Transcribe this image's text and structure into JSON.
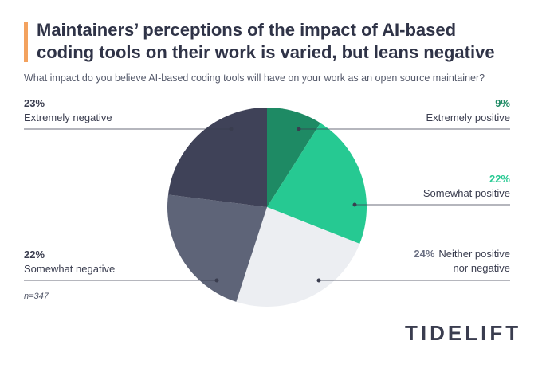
{
  "chart_data": {
    "type": "pie",
    "title": "Maintainers’ perceptions of the impact of AI-based coding tools on their work is varied, but leans negative",
    "subtitle": "What impact do you believe AI-based coding tools will have on your work as an open source maintainer?",
    "categories": [
      "Extremely positive",
      "Somewhat positive",
      "Neither positive nor negative",
      "Somewhat negative",
      "Extremely negative"
    ],
    "values": [
      9,
      22,
      24,
      22,
      23
    ],
    "value_labels": [
      "9%",
      "22%",
      "24%",
      "22%",
      "23%"
    ],
    "colors": [
      "#1e8a64",
      "#26c992",
      "#eceef2",
      "#5e6478",
      "#3f4258"
    ],
    "label_colors": [
      "#1e8a64",
      "#26c992",
      "#6b7083",
      "#3a3d4f",
      "#3a3d4f"
    ],
    "note": "n=347",
    "logo": "TIDELIFT"
  }
}
